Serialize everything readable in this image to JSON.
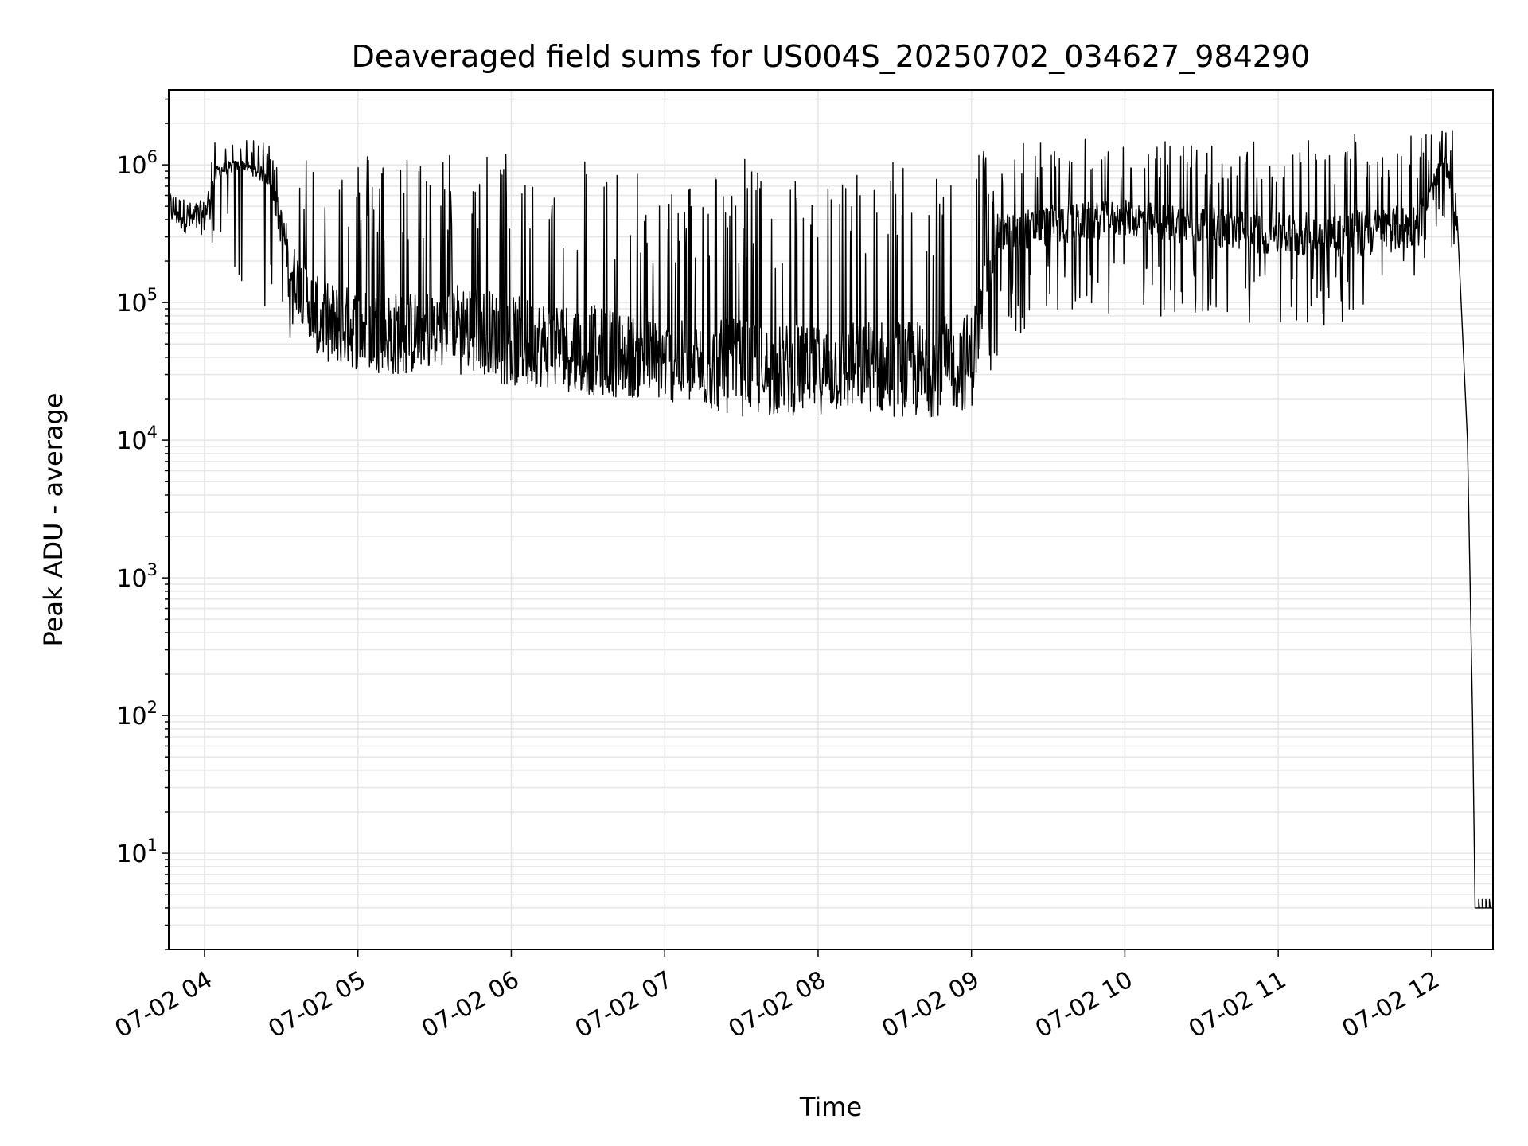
{
  "chart_data": {
    "type": "line",
    "title": "Deaveraged field sums for US004S_20250702_034627_984290",
    "xlabel": "Time",
    "ylabel": "Peak ADU - average",
    "yscale": "log",
    "ylim": [
      2,
      3500000
    ],
    "xlim": [
      "07-02 03:46",
      "07-02 12:24"
    ],
    "grid": true,
    "grid_color": "#e6e6e6",
    "line_color": "#000000",
    "x_ticks": [
      "07-02 04",
      "07-02 05",
      "07-02 06",
      "07-02 07",
      "07-02 08",
      "07-02 09",
      "07-02 10",
      "07-02 11",
      "07-02 12"
    ],
    "y_ticks": [
      {
        "base": "10",
        "exp": "1",
        "value": 10
      },
      {
        "base": "10",
        "exp": "2",
        "value": 100
      },
      {
        "base": "10",
        "exp": "3",
        "value": 1000
      },
      {
        "base": "10",
        "exp": "4",
        "value": 10000
      },
      {
        "base": "10",
        "exp": "5",
        "value": 100000
      },
      {
        "base": "10",
        "exp": "6",
        "value": 1000000
      }
    ],
    "series": [
      {
        "name": "",
        "x": [
          "07-02 03:46",
          "07-02 03:50",
          "07-02 03:55",
          "07-02 04:00",
          "07-02 04:05",
          "07-02 04:15",
          "07-02 04:25",
          "07-02 04:35",
          "07-02 04:45",
          "07-02 05:00",
          "07-02 05:20",
          "07-02 05:40",
          "07-02 06:00",
          "07-02 06:20",
          "07-02 06:40",
          "07-02 07:00",
          "07-02 07:20",
          "07-02 07:40",
          "07-02 08:00",
          "07-02 08:20",
          "07-02 08:40",
          "07-02 09:00",
          "07-02 09:10",
          "07-02 09:30",
          "07-02 10:00",
          "07-02 10:30",
          "07-02 11:00",
          "07-02 11:30",
          "07-02 11:55",
          "07-02 12:05",
          "07-02 12:10",
          "07-02 12:14",
          "07-02 12:16",
          "07-02 12:17",
          "07-02 12:24"
        ],
        "y": [
          500000,
          450000,
          400000,
          420000,
          900000,
          1000000,
          800000,
          150000,
          70000,
          60000,
          55000,
          70000,
          50000,
          45000,
          40000,
          35000,
          32000,
          30000,
          30000,
          32000,
          30000,
          35000,
          300000,
          350000,
          400000,
          350000,
          300000,
          300000,
          350000,
          1100000,
          400000,
          10000,
          100,
          4,
          4
        ],
        "peak_envelope": {
          "x": [
            "07-02 04:00",
            "07-02 04:30",
            "07-02 05:00",
            "07-02 05:30",
            "07-02 06:00",
            "07-02 06:30",
            "07-02 07:00",
            "07-02 07:30",
            "07-02 08:00",
            "07-02 08:30",
            "07-02 09:00",
            "07-02 09:30",
            "07-02 10:00",
            "07-02 10:30",
            "07-02 11:00",
            "07-02 11:30",
            "07-02 12:00"
          ],
          "max": [
            1500000,
            1500000,
            1300000,
            1300000,
            1300000,
            1300000,
            700000,
            1200000,
            800000,
            1200000,
            1300000,
            1600000,
            1500000,
            1500000,
            1500000,
            1800000,
            1800000
          ],
          "min": [
            300000,
            60000,
            30000,
            30000,
            25000,
            22000,
            22000,
            20000,
            18000,
            18000,
            22000,
            80000,
            80000,
            70000,
            65000,
            70000,
            200000
          ]
        }
      }
    ]
  }
}
